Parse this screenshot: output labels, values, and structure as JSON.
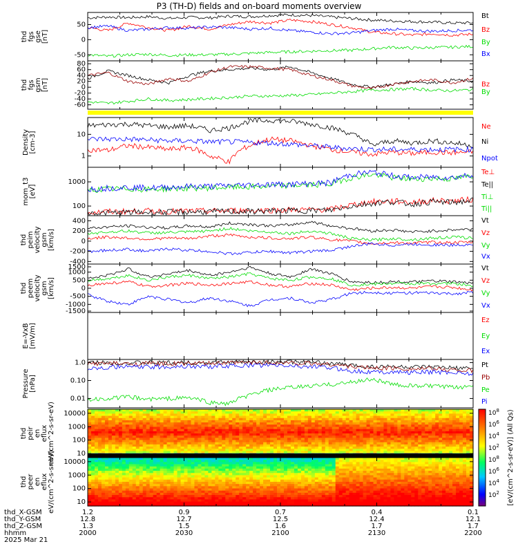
{
  "title": "P3 (TH-D) fields and on-board moments overview",
  "footer": {
    "row_labels": [
      "thd_X-GSM",
      "thd_Y-GSM",
      "thd_Z-GSM",
      "hhmm",
      "2025 Mar 21"
    ],
    "columns": [
      [
        "1.2",
        "12.8",
        "1.3",
        "2000"
      ],
      [
        "0.9",
        "12.7",
        "1.5",
        "2030"
      ],
      [
        "0.7",
        "12.5",
        "1.6",
        "2100"
      ],
      [
        "0.4",
        "12.4",
        "1.7",
        "2130"
      ],
      [
        "0.1",
        "12.1",
        "1.7",
        "2200"
      ]
    ]
  },
  "colorbar": {
    "label": "[eV/(cm^2-s-sr-eV)] (All Qs)",
    "ticks_top": [
      "10^8",
      "10^6",
      "10^4",
      "10^2"
    ],
    "ticks_bottom": [
      "10^8",
      "10^6",
      "10^4",
      "10^2"
    ]
  },
  "colors": {
    "black": "#000000",
    "red": "#ff0000",
    "green": "#00dd00",
    "blue": "#0000ff",
    "darkred": "#990000",
    "yellow": "#ffff00"
  },
  "chart_data": [
    {
      "type": "line",
      "panel": "fgs_gse",
      "ylabel": "thd fgs gse [nT]",
      "yticks": [
        "50",
        "0",
        "-50"
      ],
      "ylim": [
        -70,
        90
      ],
      "x_range_hhmm": [
        "2000",
        "2200"
      ],
      "legend": [
        "Bt",
        "Bz",
        "By",
        "Bx"
      ],
      "series": [
        {
          "name": "Bt",
          "color": "black",
          "values": [
            72,
            75,
            73,
            76,
            70,
            74,
            72,
            78,
            76,
            80,
            82,
            80,
            75,
            70,
            65,
            62,
            60,
            58,
            55,
            56
          ]
        },
        {
          "name": "Bz",
          "color": "red",
          "values": [
            40,
            30,
            55,
            40,
            30,
            45,
            35,
            50,
            60,
            55,
            65,
            60,
            50,
            40,
            25,
            20,
            15,
            20,
            15,
            18
          ]
        },
        {
          "name": "By",
          "color": "green",
          "values": [
            -50,
            -55,
            -50,
            -48,
            -52,
            -50,
            -50,
            -48,
            -45,
            -42,
            -40,
            -38,
            -36,
            -35,
            -30,
            -25,
            -28,
            -26,
            -25,
            -22
          ]
        },
        {
          "name": "Bx",
          "color": "blue",
          "values": [
            40,
            45,
            30,
            35,
            40,
            38,
            42,
            40,
            35,
            38,
            30,
            25,
            20,
            22,
            30,
            35,
            30,
            28,
            30,
            32
          ]
        }
      ]
    },
    {
      "type": "line",
      "panel": "fgs_gsm",
      "ylabel": "thd fgs gsm [nT]",
      "yticks": [
        "80",
        "60",
        "40",
        "20",
        "0",
        "-20",
        "-40",
        "-60"
      ],
      "ylim": [
        -75,
        90
      ],
      "legend": [
        "Bz",
        "By"
      ],
      "series": [
        {
          "name": "Bt",
          "color": "black",
          "values": [
            30,
            55,
            40,
            25,
            15,
            40,
            55,
            60,
            65,
            60,
            70,
            50,
            30,
            10,
            0,
            10,
            20,
            15,
            25,
            20
          ]
        },
        {
          "name": "Bz",
          "color": "darkred",
          "values": [
            40,
            50,
            20,
            10,
            30,
            20,
            50,
            70,
            70,
            65,
            60,
            40,
            25,
            5,
            -5,
            10,
            20,
            25,
            15,
            30
          ]
        },
        {
          "name": "By",
          "color": "green",
          "values": [
            -50,
            -55,
            -48,
            -40,
            -45,
            -42,
            -38,
            -35,
            -30,
            -30,
            -28,
            -25,
            -20,
            -15,
            -10,
            -8,
            -5,
            -10,
            -12,
            -8
          ]
        }
      ]
    },
    {
      "type": "line",
      "panel": "density",
      "ylabel": "Density [cm-3]",
      "yticks": [
        "10",
        "1"
      ],
      "ylim": [
        0.3,
        60
      ],
      "yscale": "log",
      "legend": [
        "Ne",
        "Ni",
        "Npot"
      ],
      "series": [
        {
          "name": "Ne",
          "color": "red",
          "values": [
            2,
            1.8,
            3,
            2.5,
            2,
            2.5,
            1,
            0.5,
            3,
            6,
            5,
            3,
            2,
            1.5,
            1.2,
            1.5,
            1.3,
            1.5,
            1.4,
            1.5
          ]
        },
        {
          "name": "Ni",
          "color": "black",
          "values": [
            25,
            28,
            30,
            25,
            22,
            25,
            15,
            20,
            40,
            45,
            40,
            30,
            20,
            10,
            3,
            5,
            4,
            5,
            4,
            3
          ]
        },
        {
          "name": "Npot",
          "color": "blue",
          "values": [
            6,
            6,
            6,
            5.5,
            5,
            5,
            4.5,
            4.5,
            4.2,
            4,
            3.5,
            3,
            2.5,
            2.2,
            2,
            2,
            2,
            2,
            2,
            2
          ]
        }
      ]
    },
    {
      "type": "line",
      "panel": "temperature",
      "ylabel": "mom_t3 [eV]",
      "yticks": [
        "1000",
        "100"
      ],
      "ylim": [
        40,
        4000
      ],
      "yscale": "log",
      "legend": [
        "Te⊥",
        "Te||",
        "Ti⊥",
        "Ti||"
      ],
      "series": [
        {
          "name": "Te⊥",
          "color": "red",
          "values": [
            55,
            58,
            60,
            62,
            60,
            62,
            62,
            65,
            66,
            68,
            70,
            70,
            72,
            110,
            150,
            160,
            140,
            170,
            160,
            190
          ]
        },
        {
          "name": "Te||",
          "color": "black",
          "values": [
            50,
            52,
            55,
            55,
            55,
            58,
            58,
            60,
            60,
            62,
            65,
            66,
            68,
            100,
            130,
            150,
            120,
            150,
            140,
            170
          ]
        },
        {
          "name": "Ti⊥",
          "color": "green",
          "values": [
            450,
            500,
            520,
            480,
            520,
            550,
            560,
            600,
            620,
            650,
            700,
            760,
            800,
            1500,
            2000,
            1500,
            1300,
            1400,
            1300,
            1800
          ]
        },
        {
          "name": "Ti||",
          "color": "blue",
          "values": [
            500,
            550,
            600,
            550,
            600,
            650,
            650,
            700,
            750,
            780,
            800,
            850,
            900,
            2000,
            2500,
            1800,
            1500,
            1600,
            1500,
            2000
          ]
        }
      ]
    },
    {
      "type": "line",
      "panel": "peim_velocity",
      "ylabel": "thd peim velocity gsm [km/s]",
      "yticks": [
        "400",
        "200",
        "0",
        "-200",
        "-400"
      ],
      "ylim": [
        -450,
        500
      ],
      "legend": [
        "Vt",
        "Vz",
        "Vy",
        "Vx"
      ],
      "series": [
        {
          "name": "Vt",
          "color": "black",
          "values": [
            250,
            280,
            300,
            270,
            260,
            300,
            280,
            350,
            330,
            300,
            320,
            380,
            300,
            250,
            200,
            220,
            180,
            200,
            220,
            240
          ]
        },
        {
          "name": "Vz",
          "color": "red",
          "values": [
            50,
            80,
            60,
            40,
            60,
            50,
            100,
            120,
            80,
            60,
            50,
            80,
            30,
            0,
            -50,
            -30,
            -40,
            -20,
            -30,
            -20
          ]
        },
        {
          "name": "Vy",
          "color": "green",
          "values": [
            150,
            180,
            200,
            160,
            170,
            180,
            200,
            250,
            200,
            180,
            150,
            200,
            150,
            50,
            20,
            50,
            30,
            60,
            80,
            60
          ]
        },
        {
          "name": "Vx",
          "color": "blue",
          "values": [
            -200,
            -180,
            -160,
            -200,
            -150,
            -180,
            -200,
            -250,
            -220,
            -200,
            -230,
            -200,
            -180,
            -100,
            -50,
            -80,
            -60,
            -70,
            -80,
            -60
          ]
        }
      ]
    },
    {
      "type": "line",
      "panel": "peem_velocity",
      "ylabel": "thd peem velocity gsm [km/s]",
      "yticks": [
        "1500",
        "1000",
        "500",
        "0",
        "-500",
        "-1000",
        "-1500"
      ],
      "ylim": [
        -1500,
        1500
      ],
      "legend": [
        "Vt",
        "Vz",
        "Vy",
        "Vx"
      ],
      "series": [
        {
          "name": "Vt",
          "color": "black",
          "values": [
            600,
            800,
            1200,
            700,
            900,
            1100,
            800,
            1000,
            1300,
            900,
            700,
            1200,
            900,
            400,
            350,
            400,
            380,
            450,
            400,
            300
          ]
        },
        {
          "name": "Vz",
          "color": "red",
          "values": [
            200,
            300,
            400,
            100,
            200,
            300,
            200,
            300,
            400,
            200,
            100,
            300,
            200,
            -100,
            0,
            50,
            0,
            100,
            50,
            -100
          ]
        },
        {
          "name": "Vy",
          "color": "green",
          "values": [
            500,
            600,
            800,
            500,
            700,
            800,
            600,
            700,
            900,
            600,
            500,
            700,
            600,
            200,
            250,
            300,
            280,
            300,
            300,
            150
          ]
        },
        {
          "name": "Vx",
          "color": "blue",
          "values": [
            -400,
            -800,
            -1000,
            -500,
            -700,
            -900,
            -600,
            -800,
            -1100,
            -700,
            -600,
            -900,
            -700,
            -300,
            -250,
            -300,
            -280,
            -300,
            -350,
            -250
          ]
        }
      ]
    },
    {
      "type": "line",
      "panel": "efield",
      "ylabel": "E=-VxB [mV/m]",
      "yticks": [],
      "ylim": [
        -1,
        1
      ],
      "legend": [
        "Ez",
        "Ey",
        "Ex"
      ],
      "series": []
    },
    {
      "type": "line",
      "panel": "pressure",
      "ylabel": "Pressure [nPa]",
      "yticks": [
        "1.0",
        "0.10",
        "0.01"
      ],
      "ylim": [
        0.003,
        1.5
      ],
      "yscale": "log",
      "legend": [
        "Pt",
        "Pb",
        "Pe",
        "Pi"
      ],
      "series": [
        {
          "name": "Pt",
          "color": "black",
          "values": [
            1.0,
            1.0,
            0.95,
            1.0,
            0.95,
            1.0,
            1.0,
            1.05,
            1.1,
            1.1,
            1.1,
            1.0,
            0.9,
            0.7,
            0.6,
            0.6,
            0.55,
            0.55,
            0.5,
            0.45
          ]
        },
        {
          "name": "Pb",
          "color": "darkred",
          "values": [
            0.9,
            0.9,
            0.85,
            0.9,
            0.85,
            0.9,
            0.9,
            0.95,
            1.0,
            1.0,
            0.95,
            0.9,
            0.8,
            0.6,
            0.5,
            0.5,
            0.45,
            0.45,
            0.4,
            0.35
          ]
        },
        {
          "name": "Pe",
          "color": "green",
          "values": [
            0.008,
            0.01,
            0.012,
            0.009,
            0.01,
            0.011,
            0.006,
            0.005,
            0.015,
            0.03,
            0.04,
            0.05,
            0.06,
            0.08,
            0.12,
            0.06,
            0.05,
            0.05,
            0.04,
            0.05
          ]
        },
        {
          "name": "Pi",
          "color": "blue",
          "values": [
            0.5,
            0.55,
            0.6,
            0.55,
            0.6,
            0.62,
            0.6,
            0.65,
            0.7,
            0.7,
            0.65,
            0.6,
            0.5,
            0.35,
            0.3,
            0.3,
            0.28,
            0.3,
            0.28,
            0.25
          ]
        }
      ]
    },
    {
      "type": "heatmap",
      "panel": "peir_en_eflux",
      "ylabel": "thd peir en eflux eV/(cm^2-s-sr-eV)",
      "yticks": [
        "10000",
        "1000",
        "100",
        "10"
      ],
      "ylim": [
        5,
        20000
      ],
      "yscale": "log",
      "colorscale": "jet",
      "z_range_log10": [
        2,
        8
      ]
    },
    {
      "type": "heatmap",
      "panel": "peer_en_eflux",
      "ylabel": "thd peer en eflux eV/(cm^2-s-sr-eV)",
      "yticks": [
        "10000",
        "1000",
        "100",
        "10"
      ],
      "ylim": [
        5,
        20000
      ],
      "yscale": "log",
      "colorscale": "jet",
      "z_range_log10": [
        2,
        8
      ]
    }
  ]
}
